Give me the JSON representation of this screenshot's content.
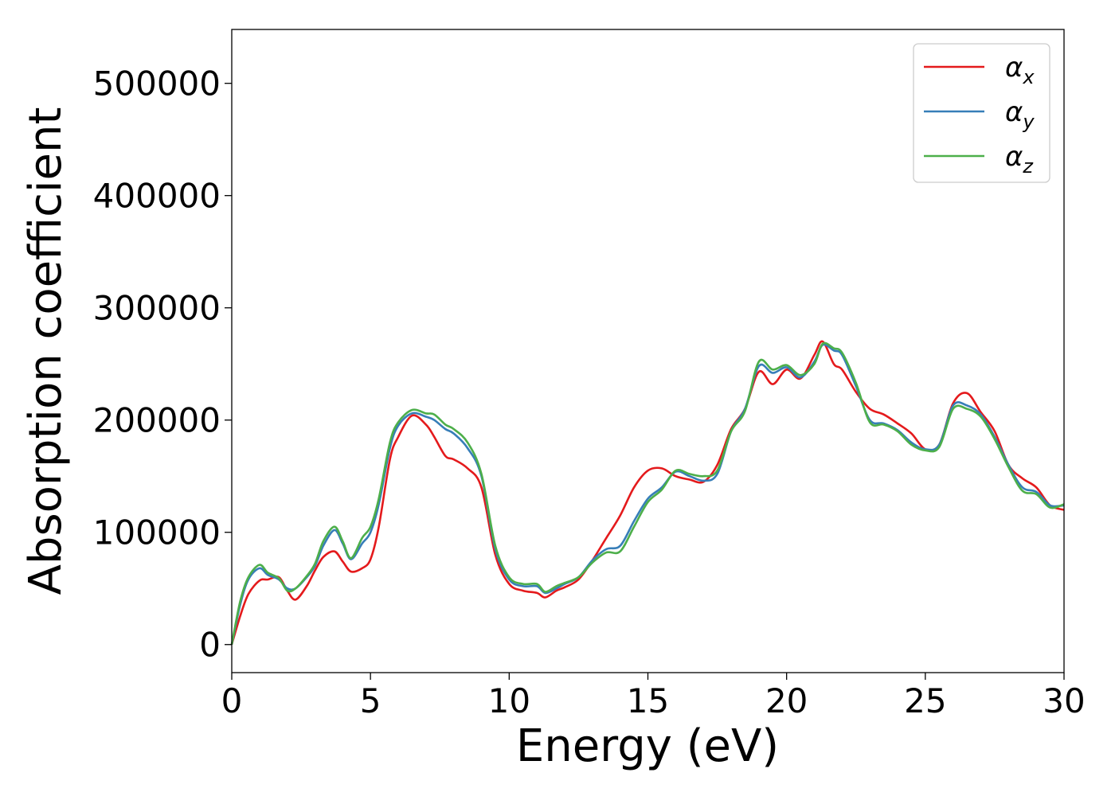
{
  "chart_data": {
    "type": "line",
    "title": "",
    "xlabel": "Energy (eV)",
    "ylabel": "Absorption coefficient",
    "xlim": [
      0,
      30
    ],
    "ylim": [
      -25000,
      548000
    ],
    "xticks": [
      0,
      5,
      10,
      15,
      20,
      25,
      30
    ],
    "xtick_labels": [
      "0",
      "5",
      "10",
      "15",
      "20",
      "25",
      "30"
    ],
    "yticks": [
      0,
      100000,
      200000,
      300000,
      400000,
      500000
    ],
    "ytick_labels": [
      "0",
      "100000",
      "200000",
      "300000",
      "400000",
      "500000"
    ],
    "grid": false,
    "legend_position": "top-right",
    "series": [
      {
        "name": "α_x",
        "name_base": "α",
        "name_sub": "x",
        "color": "#e41a1c",
        "x": [
          0,
          0.3,
          0.6,
          1.0,
          1.3,
          1.7,
          2.0,
          2.3,
          2.7,
          3.0,
          3.3,
          3.7,
          4.0,
          4.3,
          4.7,
          5.0,
          5.3,
          5.7,
          6.0,
          6.5,
          7.0,
          7.3,
          7.7,
          8.0,
          8.5,
          9.0,
          9.5,
          10.0,
          10.5,
          11.0,
          11.3,
          11.7,
          12.0,
          12.5,
          13.0,
          13.5,
          14.0,
          14.5,
          15.0,
          15.5,
          16.0,
          16.5,
          17.0,
          17.5,
          18.0,
          18.5,
          19.0,
          19.5,
          20.0,
          20.5,
          21.0,
          21.3,
          21.7,
          22.0,
          22.5,
          23.0,
          23.5,
          24.0,
          24.5,
          25.0,
          25.5,
          26.0,
          26.5,
          27.0,
          27.5,
          28.0,
          28.5,
          29.0,
          29.5,
          30.0
        ],
        "y": [
          0,
          25000,
          45000,
          57000,
          58000,
          60000,
          48000,
          40000,
          52000,
          66000,
          78000,
          83000,
          74000,
          65000,
          68000,
          76000,
          105000,
          165000,
          185000,
          204000,
          196000,
          185000,
          168000,
          165000,
          157000,
          140000,
          80000,
          54000,
          48000,
          46000,
          42000,
          48000,
          51000,
          58000,
          75000,
          95000,
          115000,
          140000,
          155000,
          157000,
          150000,
          147000,
          145000,
          160000,
          192000,
          210000,
          243000,
          232000,
          245000,
          237000,
          258000,
          270000,
          250000,
          245000,
          225000,
          210000,
          205000,
          197000,
          188000,
          174000,
          178000,
          215000,
          224000,
          207000,
          190000,
          160000,
          148000,
          140000,
          124000,
          120000
        ]
      },
      {
        "name": "α_y",
        "name_base": "α",
        "name_sub": "y",
        "color": "#377eb8",
        "x": [
          0,
          0.3,
          0.6,
          1.0,
          1.3,
          1.7,
          2.0,
          2.3,
          2.7,
          3.0,
          3.3,
          3.7,
          4.0,
          4.3,
          4.7,
          5.0,
          5.3,
          5.7,
          6.0,
          6.5,
          7.0,
          7.3,
          7.7,
          8.0,
          8.5,
          9.0,
          9.5,
          10.0,
          10.5,
          11.0,
          11.3,
          11.7,
          12.0,
          12.5,
          13.0,
          13.5,
          14.0,
          14.5,
          15.0,
          15.5,
          16.0,
          16.5,
          17.0,
          17.5,
          18.0,
          18.5,
          19.0,
          19.5,
          20.0,
          20.5,
          21.0,
          21.3,
          21.7,
          22.0,
          22.5,
          23.0,
          23.5,
          24.0,
          24.5,
          25.0,
          25.5,
          26.0,
          26.5,
          27.0,
          27.5,
          28.0,
          28.5,
          29.0,
          29.5,
          30.0
        ],
        "y": [
          0,
          35000,
          58000,
          68000,
          62000,
          58000,
          50000,
          50000,
          60000,
          70000,
          88000,
          102000,
          90000,
          76000,
          90000,
          100000,
          125000,
          175000,
          195000,
          206000,
          203000,
          200000,
          192000,
          188000,
          175000,
          150000,
          85000,
          58000,
          52000,
          52000,
          46000,
          50000,
          54000,
          60000,
          75000,
          85000,
          88000,
          110000,
          130000,
          140000,
          154000,
          150000,
          146000,
          152000,
          190000,
          210000,
          248000,
          242000,
          247000,
          238000,
          252000,
          267000,
          262000,
          258000,
          230000,
          200000,
          197000,
          191000,
          180000,
          174000,
          178000,
          213000,
          213000,
          205000,
          185000,
          160000,
          140000,
          136000,
          124000,
          124000
        ]
      },
      {
        "name": "α_z",
        "name_base": "α",
        "name_sub": "z",
        "color": "#4daf4a",
        "x": [
          0,
          0.3,
          0.6,
          1.0,
          1.3,
          1.7,
          2.0,
          2.3,
          2.7,
          3.0,
          3.3,
          3.7,
          4.0,
          4.3,
          4.7,
          5.0,
          5.3,
          5.7,
          6.0,
          6.5,
          7.0,
          7.3,
          7.7,
          8.0,
          8.5,
          9.0,
          9.5,
          10.0,
          10.5,
          11.0,
          11.3,
          11.7,
          12.0,
          12.5,
          13.0,
          13.5,
          14.0,
          14.5,
          15.0,
          15.5,
          16.0,
          16.5,
          17.0,
          17.5,
          18.0,
          18.5,
          19.0,
          19.5,
          20.0,
          20.5,
          21.0,
          21.3,
          21.7,
          22.0,
          22.5,
          23.0,
          23.5,
          24.0,
          24.5,
          25.0,
          25.5,
          26.0,
          26.5,
          27.0,
          27.5,
          28.0,
          28.5,
          29.0,
          29.5,
          30.0
        ],
        "y": [
          0,
          38000,
          60000,
          71000,
          64000,
          59000,
          48000,
          50000,
          61000,
          72000,
          92000,
          105000,
          92000,
          77000,
          95000,
          105000,
          130000,
          180000,
          198000,
          209000,
          206000,
          205000,
          196000,
          192000,
          180000,
          152000,
          88000,
          60000,
          54000,
          54000,
          47000,
          52000,
          55000,
          60000,
          73000,
          82000,
          83000,
          105000,
          127000,
          138000,
          155000,
          152000,
          150000,
          155000,
          190000,
          208000,
          252000,
          245000,
          249000,
          240000,
          250000,
          268000,
          264000,
          260000,
          233000,
          198000,
          196000,
          190000,
          178000,
          173000,
          176000,
          210000,
          210000,
          203000,
          183000,
          158000,
          137000,
          134000,
          122000,
          125000
        ]
      }
    ]
  }
}
